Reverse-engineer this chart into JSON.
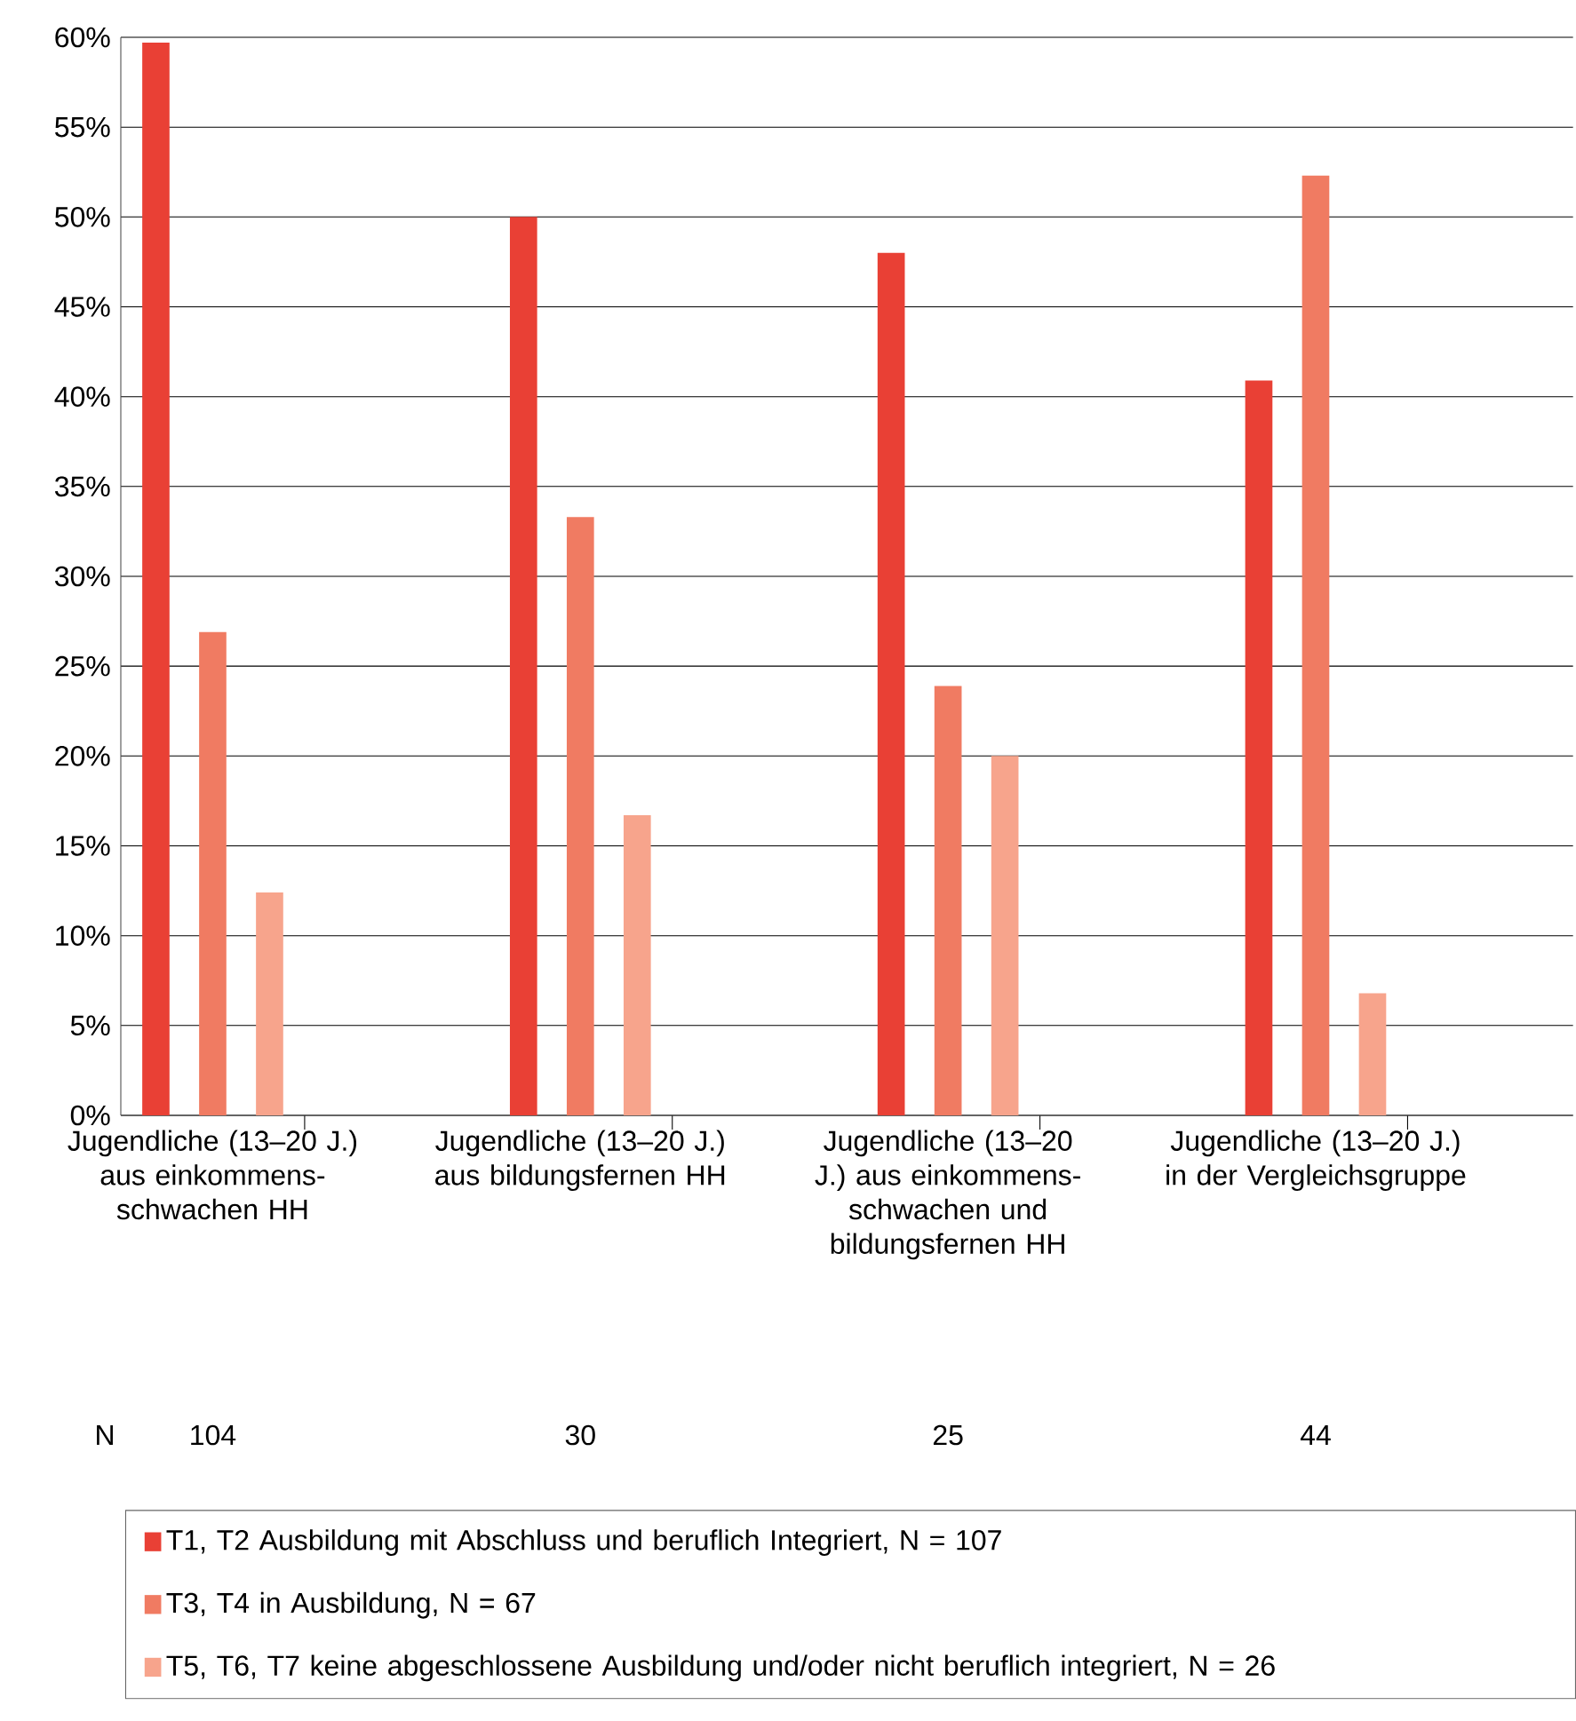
{
  "chart_data": {
    "type": "bar",
    "categories": [
      "Jugendliche (13–20 J.) aus einkommens-schwachen HH",
      "Jugendliche (13–20 J.) aus bildungsfernen HH",
      "Jugendliche (13–20 J.) aus einkommens-schwachen und bildungsfernen HH",
      "Jugendliche (13–20 J.) in der Vergleichsgruppe"
    ],
    "series": [
      {
        "name": "T1, T2 Ausbildung mit Abschluss und beruflich Integriert, N = 107",
        "color": "#e94035",
        "values": [
          59.7,
          50,
          48,
          40.9
        ]
      },
      {
        "name": "T3, T4 in Ausbildung, N = 67",
        "color": "#f07b62",
        "values": [
          26.9,
          33.3,
          23.9,
          52.3
        ]
      },
      {
        "name": "T5, T6, T7 keine abgeschlossene Ausbildung und/oder nicht beruflich integriert, N = 26",
        "color": "#f7a48c",
        "values": [
          12.4,
          16.7,
          20,
          6.8
        ]
      }
    ],
    "ylim": [
      0,
      60
    ],
    "yticks": [
      {
        "value": 0,
        "label": "0%"
      },
      {
        "value": 5,
        "label": "5%"
      },
      {
        "value": 10,
        "label": "10%"
      },
      {
        "value": 15,
        "label": "15%"
      },
      {
        "value": 20,
        "label": "20%"
      },
      {
        "value": 25,
        "label": "25%"
      },
      {
        "value": 30,
        "label": "30%"
      },
      {
        "value": 35,
        "label": "35%"
      },
      {
        "value": 40,
        "label": "40%"
      },
      {
        "value": 45,
        "label": "45%"
      },
      {
        "value": 50,
        "label": "50%"
      },
      {
        "value": 55,
        "label": "55%"
      },
      {
        "value": 60,
        "label": "60%"
      }
    ],
    "grid": "y",
    "legend": "bottom",
    "annotations": [
      "N",
      "104",
      "30",
      "25",
      "44"
    ]
  }
}
